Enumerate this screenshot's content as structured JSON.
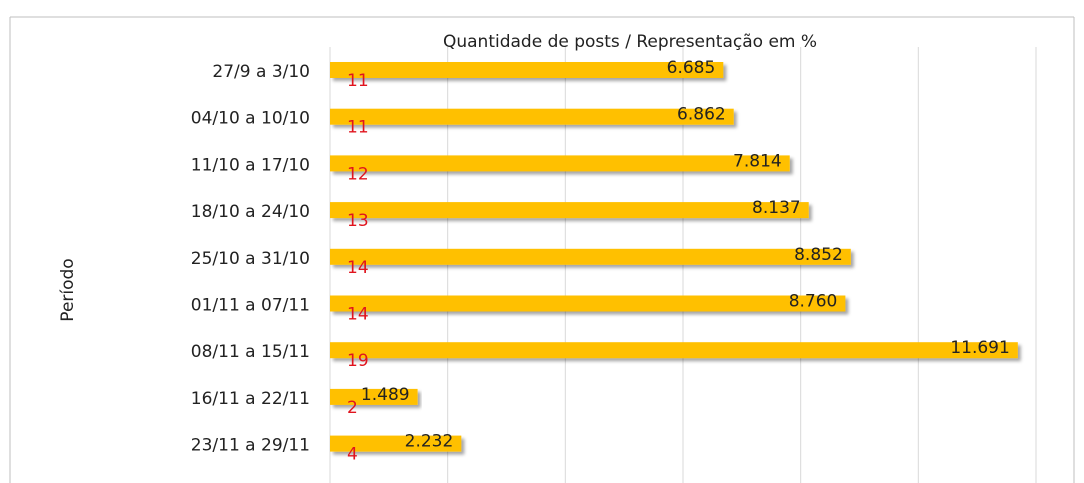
{
  "chart_data": {
    "type": "bar",
    "orientation": "horizontal",
    "title": "Quantidade de posts / Representação em %",
    "y_label": "Período",
    "categories": [
      "27/9 a 3/10",
      "04/10 a 10/10",
      "11/10 a 17/10",
      "18/10 a 24/10",
      "25/10 a 31/10",
      "01/11 a 07/11",
      "08/11 a 15/11",
      "16/11 a 22/11",
      "23/11 a 29/11"
    ],
    "series": [
      {
        "color": "#ffc000",
        "values": [
          6685,
          6862,
          7814,
          8137,
          8852,
          8760,
          11691,
          1489,
          2232
        ],
        "value_labels": [
          "6.685",
          "6.862",
          "7.814",
          "8.137",
          "8.852",
          "8.760",
          "11.691",
          "1.489",
          "2.232"
        ]
      },
      {
        "color": "#e0141e",
        "values": [
          11,
          11,
          12,
          13,
          14,
          14,
          19,
          2,
          4
        ]
      }
    ],
    "xlim": [
      0,
      12000
    ],
    "xticks": [
      0,
      2000,
      4000,
      6000,
      8000,
      10000,
      12000
    ],
    "grid": true
  }
}
